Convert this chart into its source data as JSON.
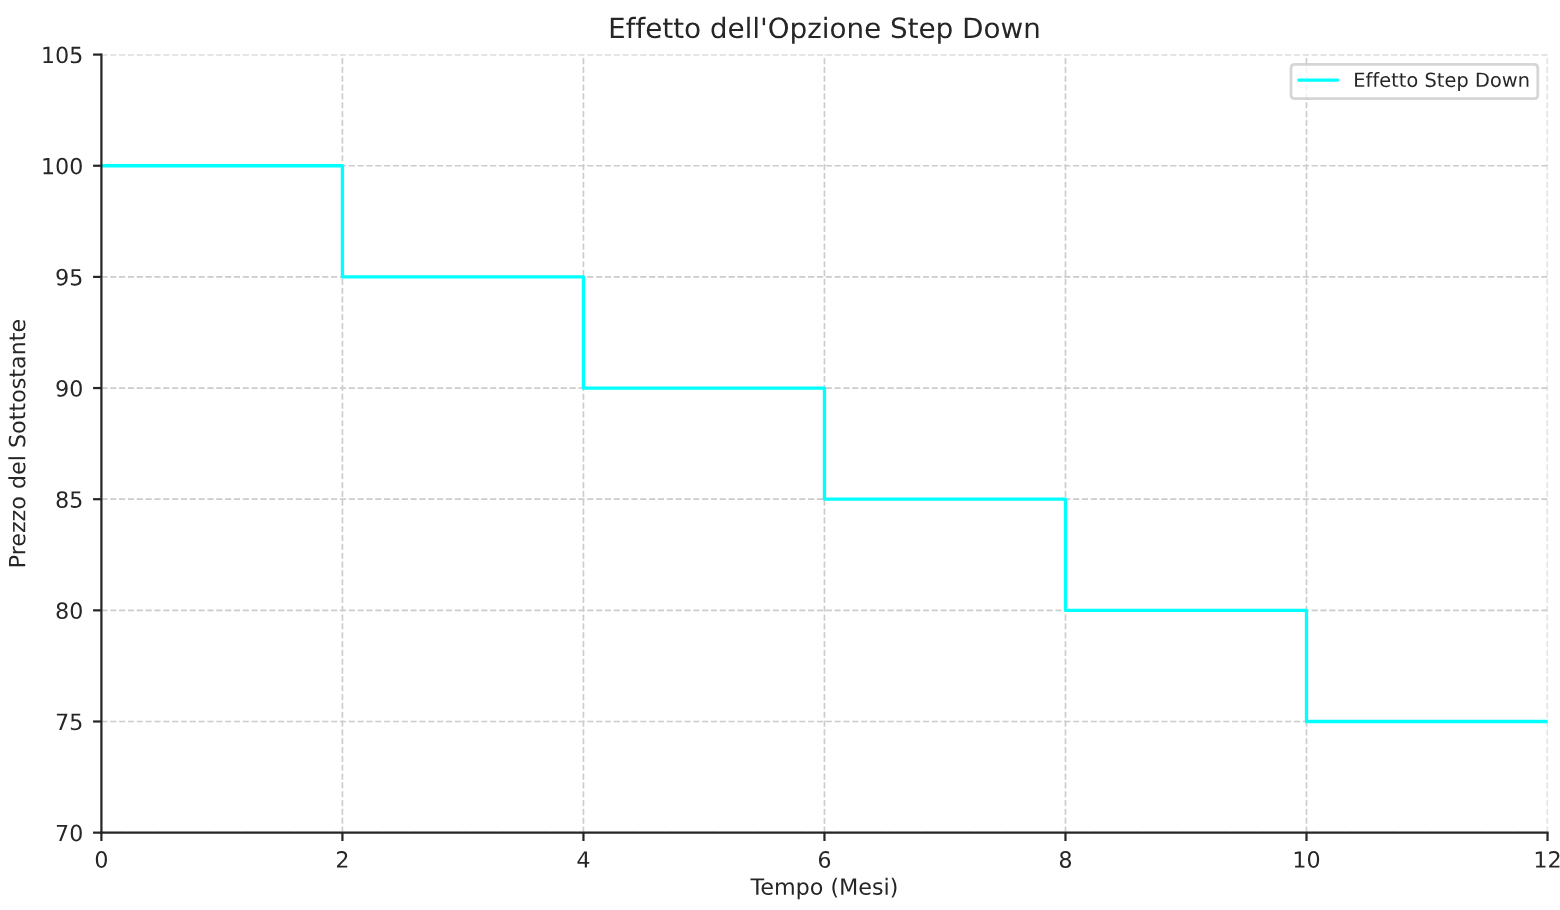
{
  "chart_data": {
    "type": "step",
    "title": "Effetto dell'Opzione Step Down",
    "xlabel": "Tempo (Mesi)",
    "ylabel": "Prezzo del Sottostante",
    "x": [
      0,
      2,
      4,
      6,
      8,
      10,
      12
    ],
    "series": [
      {
        "name": "Effetto Step Down",
        "color": "#00ffff",
        "values": [
          100,
          95,
          90,
          85,
          80,
          75,
          75
        ]
      }
    ],
    "xlim": [
      0,
      12
    ],
    "xticks": [
      0,
      2,
      4,
      6,
      8,
      10,
      12
    ],
    "ylim": [
      70,
      105
    ],
    "yticks": [
      70,
      75,
      80,
      85,
      90,
      95,
      100,
      105
    ],
    "grid": true,
    "legend": "top right",
    "line_style": "solid",
    "marker": "none"
  }
}
